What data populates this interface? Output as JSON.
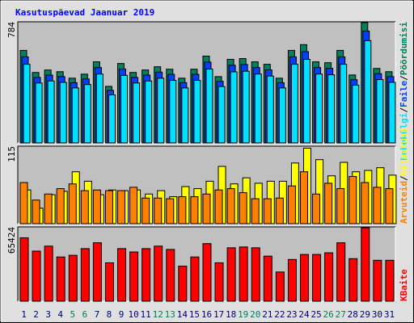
{
  "title": "Kasutuspäevad Jaanuar 2019",
  "legend_separator": "/",
  "chart_data": [
    {
      "type": "bar",
      "ylim": [
        0,
        784
      ],
      "yticks": [
        784
      ],
      "series": [
        {
          "name": "Pöördumisi",
          "color": "#00805c",
          "values": [
            599,
            456,
            472,
            461,
            419,
            445,
            525,
            366,
            514,
            456,
            472,
            493,
            477,
            419,
            477,
            562,
            429,
            541,
            546,
            525,
            509,
            419,
            599,
            636,
            525,
            519,
            599,
            440,
            779,
            482,
            461
          ]
        },
        {
          "name": "Faile",
          "color": "#0040ff",
          "values": [
            557,
            424,
            439,
            429,
            390,
            414,
            488,
            340,
            478,
            424,
            439,
            458,
            444,
            390,
            444,
            523,
            399,
            503,
            508,
            488,
            473,
            390,
            557,
            591,
            488,
            483,
            557,
            409,
            724,
            448,
            429
          ]
        },
        {
          "name": "Lehekülgi",
          "color": "#00e0ff",
          "values": [
            509,
            388,
            401,
            392,
            356,
            378,
            446,
            311,
            437,
            388,
            401,
            419,
            405,
            356,
            405,
            478,
            365,
            460,
            464,
            446,
            433,
            356,
            509,
            541,
            446,
            441,
            509,
            374,
            662,
            410,
            392
          ]
        }
      ]
    },
    {
      "type": "bar",
      "ylim": [
        0,
        115
      ],
      "yticks": [
        115
      ],
      "series": [
        {
          "name": "Külastusi",
          "color": "#ffff00",
          "values": [
            50,
            23,
            43,
            48,
            77,
            63,
            43,
            50,
            49,
            50,
            44,
            49,
            40,
            55,
            52,
            63,
            85,
            59,
            68,
            60,
            63,
            63,
            90,
            112,
            95,
            71,
            91,
            77,
            79,
            83,
            72
          ]
        },
        {
          "name": "Arvuteid",
          "color": "#ff8000",
          "values": [
            61,
            35,
            44,
            52,
            59,
            49,
            50,
            49,
            49,
            54,
            38,
            38,
            37,
            40,
            40,
            44,
            50,
            52,
            46,
            37,
            37,
            38,
            56,
            77,
            44,
            60,
            52,
            70,
            61,
            54,
            52
          ]
        }
      ]
    },
    {
      "type": "bar",
      "ylim": [
        0,
        65424
      ],
      "yticks": [
        65424
      ],
      "categories": [
        "1",
        "2",
        "3",
        "4",
        "5",
        "6",
        "7",
        "8",
        "9",
        "10",
        "11",
        "12",
        "13",
        "14",
        "15",
        "16",
        "17",
        "18",
        "19",
        "20",
        "21",
        "22",
        "23",
        "24",
        "25",
        "26",
        "27",
        "28",
        "29",
        "30",
        "31"
      ],
      "category_colors": [
        "#000080",
        "#000080",
        "#000080",
        "#000080",
        "#00805c",
        "#00805c",
        "#000080",
        "#000080",
        "#000080",
        "#000080",
        "#000080",
        "#00805c",
        "#00805c",
        "#000080",
        "#000080",
        "#000080",
        "#000080",
        "#000080",
        "#00805c",
        "#00805c",
        "#000080",
        "#000080",
        "#000080",
        "#000080",
        "#000080",
        "#00805c",
        "#00805c",
        "#000080",
        "#000080",
        "#000080",
        "#000080"
      ],
      "series": [
        {
          "name": "KBaite",
          "color": "#ff0000",
          "values": [
            55860,
            44100,
            48510,
            38955,
            40425,
            46305,
            51450,
            33810,
            46305,
            43365,
            46305,
            48510,
            45570,
            30870,
            38955,
            50715,
            33810,
            47040,
            47775,
            47040,
            39690,
            25725,
            36750,
            41160,
            41160,
            42630,
            51450,
            37485,
            64680,
            36015,
            36015
          ]
        }
      ]
    }
  ]
}
